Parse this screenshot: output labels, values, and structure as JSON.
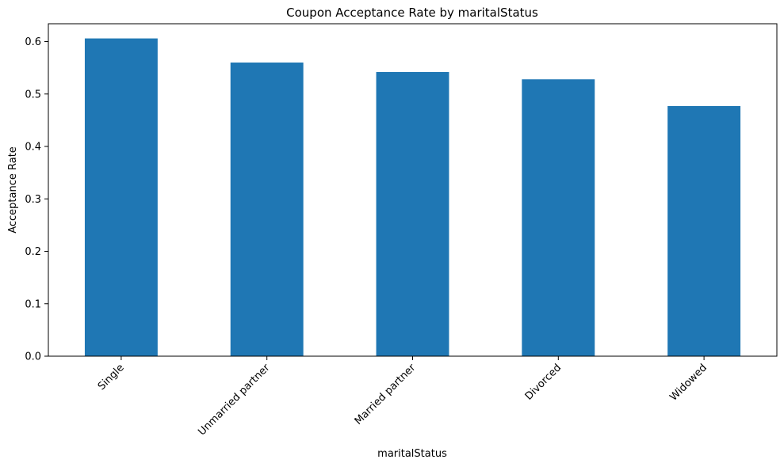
{
  "chart_data": {
    "type": "bar",
    "title": "Coupon Acceptance Rate by maritalStatus",
    "xlabel": "maritalStatus",
    "ylabel": "Acceptance Rate",
    "categories": [
      "Single",
      "Unmarried partner",
      "Married partner",
      "Divorced",
      "Widowed"
    ],
    "values": [
      0.606,
      0.56,
      0.542,
      0.528,
      0.477
    ],
    "ylim": [
      0,
      0.634
    ],
    "yticks": [
      "0.0",
      "0.1",
      "0.2",
      "0.3",
      "0.4",
      "0.5",
      "0.6"
    ],
    "grid": false,
    "legend": "none",
    "bar_color": "#1f77b4"
  }
}
